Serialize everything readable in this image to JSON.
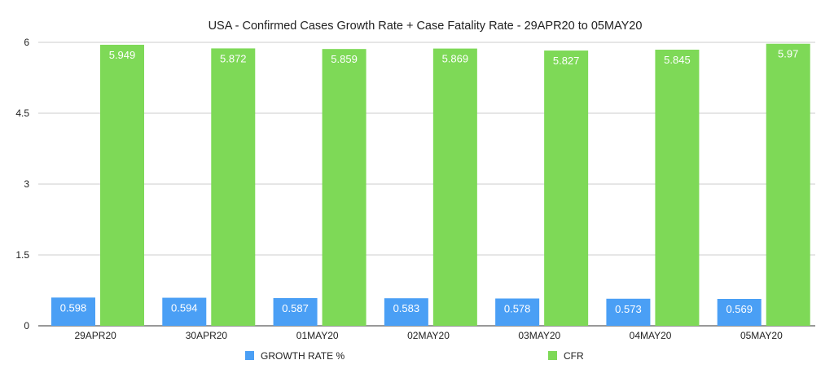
{
  "chart_data": {
    "type": "bar",
    "title": "USA - Confirmed Cases Growth Rate + Case Fatality Rate - 29APR20 to 05MAY20",
    "xlabel": "",
    "ylabel": "",
    "categories": [
      "29APR20",
      "30APR20",
      "01MAY20",
      "02MAY20",
      "03MAY20",
      "04MAY20",
      "05MAY20"
    ],
    "series": [
      {
        "name": "GROWTH RATE %",
        "color": "#4a9ff5",
        "values": [
          0.598,
          0.594,
          0.587,
          0.583,
          0.578,
          0.573,
          0.569
        ],
        "labels": [
          "0.598",
          "0.594",
          "0.587",
          "0.583",
          "0.578",
          "0.573",
          "0.569"
        ]
      },
      {
        "name": "CFR",
        "color": "#7ed957",
        "values": [
          5.949,
          5.872,
          5.859,
          5.869,
          5.827,
          5.845,
          5.97
        ],
        "labels": [
          "5.949",
          "5.872",
          "5.859",
          "5.869",
          "5.827",
          "5.845",
          "5.97"
        ]
      }
    ],
    "ylim": [
      0,
      6
    ],
    "yticks": [
      0,
      1.5,
      3,
      4.5,
      6
    ],
    "ytick_labels": [
      "0",
      "1.5",
      "3",
      "4.5",
      "6"
    ],
    "grid": true,
    "legend_position": "bottom"
  }
}
